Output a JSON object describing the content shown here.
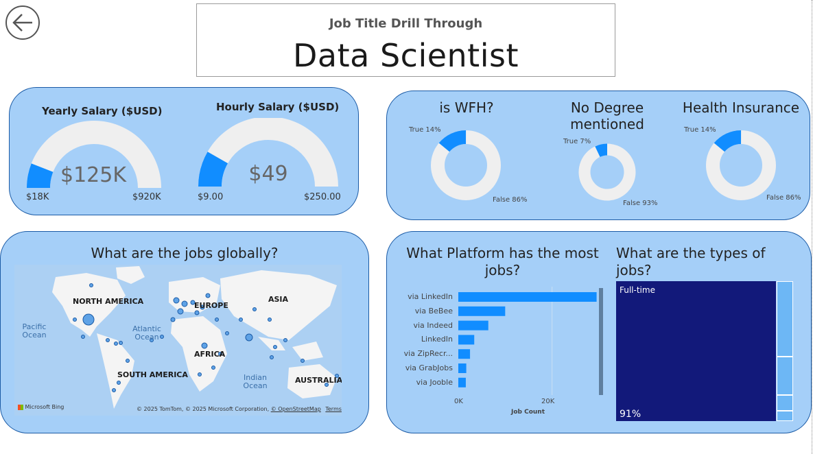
{
  "header": {
    "subtitle": "Job Title Drill Through",
    "title": "Data Scientist"
  },
  "gauges": [
    {
      "title": "Yearly Salary ($USD)",
      "value_label": "$125K",
      "min_label": "$18K",
      "max_label": "$920K",
      "value": 125000,
      "min": 18000,
      "max": 920000
    },
    {
      "title": "Hourly Salary ($USD)",
      "value_label": "$49",
      "min_label": "$9.00",
      "max_label": "$250.00",
      "value": 49,
      "min": 9,
      "max": 250
    }
  ],
  "donuts": [
    {
      "title": "is WFH?",
      "true_label": "True 14%",
      "false_label": "False 86%",
      "true_pct": 14
    },
    {
      "title": "No Degree mentioned",
      "true_label": "True 7%",
      "false_label": "False 93%",
      "true_pct": 7
    },
    {
      "title": "Health Insurance",
      "true_label": "True 14%",
      "false_label": "False 86%",
      "true_pct": 14
    }
  ],
  "map": {
    "title": "What are the jobs globally?",
    "regions": [
      "NORTH AMERICA",
      "EUROPE",
      "ASIA",
      "AFRICA",
      "SOUTH AMERICA",
      "AUSTRALIA"
    ],
    "oceans": [
      "Pacific Ocean",
      "Atlantic Ocean",
      "Indian Ocean"
    ],
    "provider": "Microsoft Bing",
    "copyright": "© 2025 TomTom, © 2025 Microsoft Corporation,",
    "osm_link": "© OpenStreetMap",
    "terms_link": "Terms"
  },
  "colors": {
    "card_bg": "#a5cff8",
    "card_border": "#1a5aa5",
    "accent": "#118dff",
    "track": "#efefef",
    "treemap_main": "#12197a",
    "treemap_other": "#6db7f5"
  },
  "chart_data": [
    {
      "type": "bar",
      "title": "What Platform has the most jobs?",
      "orientation": "horizontal",
      "categories": [
        "via LinkedIn",
        "via BeBee",
        "via Indeed",
        "LinkedIn",
        "via ZipRecr...",
        "via GrabJobs",
        "via Jooble"
      ],
      "values": [
        29500,
        10000,
        6400,
        3400,
        2500,
        1700,
        1600
      ],
      "xlabel": "Job Count",
      "x_ticks": [
        "0K",
        "20K"
      ],
      "xlim": [
        0,
        30000
      ]
    },
    {
      "type": "treemap",
      "title": "What are the types of jobs?",
      "categories": [
        "Full-time",
        "",
        "",
        "",
        ""
      ],
      "values": [
        91,
        4.5,
        2.5,
        1,
        1
      ],
      "data_label": "91%"
    }
  ]
}
